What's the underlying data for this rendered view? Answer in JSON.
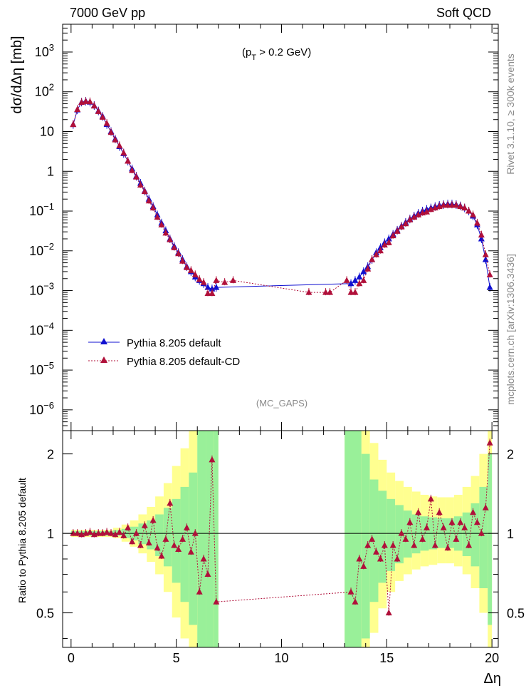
{
  "header": {
    "left": "7000 GeV pp",
    "right": "Soft QCD"
  },
  "annotations": {
    "cut": "(p",
    "cut_sub": "T",
    "cut_rest": " > 0.2 GeV)",
    "analysis": "(MC_GAPS)",
    "side_rivet": "Rivet 3.1.10, ≥ 300k events",
    "side_mcplots": "mcplots.cern.ch [arXiv:1306.3436]"
  },
  "legend": [
    {
      "name": "Pythia 8.205 default",
      "color": "#1010d0"
    },
    {
      "name": "Pythia 8.205 default-CD",
      "color": "#b0103a"
    }
  ],
  "colors": {
    "band_yellow": "#ffff90",
    "band_green": "#99f099",
    "blue": "#1010d0",
    "red": "#b0103a"
  },
  "chart_data": [
    {
      "type": "line",
      "title": "",
      "xlabel": "Δη",
      "ylabel": "dσ/dΔη [mb]",
      "yscale": "log",
      "xlim": [
        -0.4,
        20.3
      ],
      "ylim": [
        3e-07,
        5000
      ],
      "xticks": [
        0,
        5,
        10,
        15,
        20
      ],
      "yticks": [
        {
          "v": 1e-06,
          "t": "10",
          "sup": "−6"
        },
        {
          "v": 1e-05,
          "t": "10",
          "sup": "−5"
        },
        {
          "v": 0.0001,
          "t": "10",
          "sup": "−4"
        },
        {
          "v": 0.001,
          "t": "10",
          "sup": "−3"
        },
        {
          "v": 0.01,
          "t": "10",
          "sup": "−2"
        },
        {
          "v": 0.1,
          "t": "10",
          "sup": "−1"
        },
        {
          "v": 1,
          "t": "1",
          "sup": ""
        },
        {
          "v": 10,
          "t": "10",
          "sup": ""
        },
        {
          "v": 100,
          "t": "10",
          "sup": "2"
        },
        {
          "v": 1000,
          "t": "10",
          "sup": "3"
        }
      ],
      "series": [
        {
          "name": "Pythia 8.205 default",
          "x": [
            0.1,
            0.3,
            0.5,
            0.7,
            0.9,
            1.1,
            1.3,
            1.5,
            1.7,
            1.9,
            2.1,
            2.3,
            2.5,
            2.7,
            2.9,
            3.1,
            3.3,
            3.5,
            3.7,
            3.9,
            4.1,
            4.3,
            4.5,
            4.7,
            4.9,
            5.1,
            5.3,
            5.5,
            5.7,
            5.9,
            6.1,
            6.3,
            6.5,
            6.7,
            6.9,
            13.3,
            13.5,
            13.7,
            13.9,
            14.1,
            14.3,
            14.5,
            14.7,
            14.9,
            15.1,
            15.3,
            15.5,
            15.7,
            15.9,
            16.1,
            16.3,
            16.5,
            16.7,
            16.9,
            17.1,
            17.3,
            17.5,
            17.7,
            17.9,
            18.1,
            18.3,
            18.5,
            18.7,
            18.9,
            19.1,
            19.3,
            19.5,
            19.7,
            19.9
          ],
          "y": [
            15,
            35,
            55,
            58,
            55,
            45,
            33,
            24,
            15,
            10,
            6.5,
            4.2,
            2.8,
            1.8,
            1.15,
            0.75,
            0.5,
            0.32,
            0.2,
            0.13,
            0.08,
            0.05,
            0.032,
            0.02,
            0.013,
            0.009,
            0.006,
            0.004,
            0.003,
            0.0022,
            0.0018,
            0.0015,
            0.0012,
            0.0011,
            0.0012,
            0.0015,
            0.0018,
            0.0022,
            0.003,
            0.004,
            0.006,
            0.009,
            0.012,
            0.016,
            0.02,
            0.026,
            0.033,
            0.042,
            0.052,
            0.063,
            0.075,
            0.088,
            0.1,
            0.11,
            0.12,
            0.13,
            0.14,
            0.145,
            0.15,
            0.15,
            0.145,
            0.135,
            0.12,
            0.1,
            0.075,
            0.045,
            0.02,
            0.006,
            0.0012
          ]
        },
        {
          "name": "Pythia 8.205 default-CD",
          "x": [
            0.1,
            0.3,
            0.5,
            0.7,
            0.9,
            1.1,
            1.3,
            1.5,
            1.7,
            1.9,
            2.1,
            2.3,
            2.5,
            2.7,
            2.9,
            3.1,
            3.3,
            3.5,
            3.7,
            3.9,
            4.1,
            4.3,
            4.5,
            4.7,
            4.9,
            5.1,
            5.3,
            5.5,
            5.7,
            5.9,
            6.1,
            6.3,
            6.5,
            6.7,
            6.9,
            7.3,
            7.7,
            11.3,
            12.1,
            12.3,
            13.1,
            13.3,
            13.5,
            13.7,
            13.9,
            14.1,
            14.3,
            14.5,
            14.7,
            14.9,
            15.1,
            15.3,
            15.5,
            15.7,
            15.9,
            16.1,
            16.3,
            16.5,
            16.7,
            16.9,
            17.1,
            17.3,
            17.5,
            17.7,
            17.9,
            18.1,
            18.3,
            18.5,
            18.7,
            18.9,
            19.1,
            19.3,
            19.5,
            19.7,
            19.9
          ],
          "y": [
            15,
            36,
            54,
            57,
            56,
            44,
            32,
            23,
            16,
            9.5,
            6.2,
            4.4,
            2.9,
            1.8,
            1.05,
            0.72,
            0.45,
            0.31,
            0.18,
            0.12,
            0.07,
            0.045,
            0.028,
            0.019,
            0.012,
            0.0085,
            0.0055,
            0.0038,
            0.0032,
            0.0025,
            0.0019,
            0.0016,
            0.00085,
            0.00085,
            0.0018,
            0.0016,
            0.0018,
            0.0009,
            0.0009,
            0.0009,
            0.0018,
            0.0009,
            0.0009,
            0.0015,
            0.0018,
            0.0035,
            0.006,
            0.008,
            0.01,
            0.014,
            0.016,
            0.024,
            0.031,
            0.04,
            0.048,
            0.06,
            0.07,
            0.08,
            0.09,
            0.095,
            0.11,
            0.12,
            0.13,
            0.14,
            0.14,
            0.14,
            0.14,
            0.13,
            0.12,
            0.1,
            0.08,
            0.05,
            0.025,
            0.008,
            0.0025
          ]
        }
      ]
    },
    {
      "type": "line",
      "title": "",
      "xlabel": "Δη",
      "ylabel": "Ratio to Pythia 8.205 default",
      "yscale": "log",
      "xlim": [
        -0.4,
        20.3
      ],
      "ylim": [
        0.37,
        2.45
      ],
      "xticks": [
        0,
        5,
        10,
        15,
        20
      ],
      "yticks": [
        0.5,
        1,
        2
      ],
      "series": [
        {
          "name": "Pythia 8.205 default-CD / default",
          "x": [
            0.1,
            0.3,
            0.5,
            0.7,
            0.9,
            1.1,
            1.3,
            1.5,
            1.7,
            1.9,
            2.1,
            2.3,
            2.5,
            2.7,
            2.9,
            3.1,
            3.3,
            3.5,
            3.7,
            3.9,
            4.1,
            4.3,
            4.5,
            4.7,
            4.9,
            5.1,
            5.3,
            5.5,
            5.7,
            5.9,
            6.1,
            6.3,
            6.5,
            6.7,
            6.9,
            13.3,
            13.5,
            13.7,
            13.9,
            14.1,
            14.3,
            14.5,
            14.7,
            14.9,
            15.1,
            15.3,
            15.5,
            15.7,
            15.9,
            16.1,
            16.3,
            16.5,
            16.7,
            16.9,
            17.1,
            17.3,
            17.5,
            17.7,
            17.9,
            18.1,
            18.3,
            18.5,
            18.7,
            18.9,
            19.1,
            19.3,
            19.5,
            19.7,
            19.9
          ],
          "y": [
            1.0,
            1.0,
            0.99,
            1.0,
            1.01,
            0.99,
            1.0,
            1.0,
            1.01,
            1.0,
            0.99,
            1.01,
            0.98,
            1.05,
            0.93,
            1.0,
            0.9,
            1.07,
            0.92,
            1.12,
            0.88,
            0.82,
            0.95,
            1.3,
            0.9,
            0.87,
            0.95,
            1.05,
            0.85,
            1.0,
            0.6,
            0.8,
            0.7,
            1.9,
            0.55,
            0.6,
            0.55,
            0.8,
            0.75,
            0.9,
            0.95,
            0.85,
            0.8,
            0.9,
            0.5,
            0.9,
            0.8,
            1.0,
            0.95,
            1.1,
            0.9,
            1.2,
            0.95,
            1.05,
            1.35,
            0.9,
            1.2,
            1.05,
            0.88,
            1.1,
            0.95,
            1.1,
            1.05,
            0.9,
            1.2,
            1.1,
            1.0,
            1.25,
            2.2
          ]
        }
      ],
      "band_x_edges": [
        0.0,
        0.4,
        0.8,
        1.2,
        1.6,
        2.0,
        2.4,
        2.8,
        3.2,
        3.6,
        4.0,
        4.4,
        4.8,
        5.2,
        5.6,
        6.0,
        6.4,
        6.8,
        7.0,
        13.0,
        13.4,
        13.8,
        14.2,
        14.6,
        15.0,
        15.4,
        15.8,
        16.2,
        16.6,
        17.0,
        17.4,
        17.8,
        18.2,
        18.6,
        19.0,
        19.4,
        19.8,
        20.0
      ],
      "band_green": [
        [
          0.98,
          1.02
        ],
        [
          0.98,
          1.02
        ],
        [
          0.98,
          1.02
        ],
        [
          0.98,
          1.02
        ],
        [
          0.98,
          1.02
        ],
        [
          0.98,
          1.03
        ],
        [
          0.96,
          1.04
        ],
        [
          0.94,
          1.06
        ],
        [
          0.91,
          1.09
        ],
        [
          0.87,
          1.12
        ],
        [
          0.82,
          1.18
        ],
        [
          0.75,
          1.25
        ],
        [
          0.65,
          1.35
        ],
        [
          0.55,
          1.5
        ],
        [
          0.45,
          1.7
        ],
        [
          0.37,
          2.45
        ],
        [
          0.37,
          2.45
        ],
        [
          0.37,
          2.45
        ],
        [
          1,
          1
        ],
        [
          0.37,
          2.45
        ],
        [
          0.37,
          2.45
        ],
        [
          0.4,
          2.0
        ],
        [
          0.55,
          1.6
        ],
        [
          0.65,
          1.45
        ],
        [
          0.72,
          1.35
        ],
        [
          0.77,
          1.28
        ],
        [
          0.81,
          1.22
        ],
        [
          0.84,
          1.18
        ],
        [
          0.86,
          1.16
        ],
        [
          0.87,
          1.15
        ],
        [
          0.88,
          1.14
        ],
        [
          0.88,
          1.14
        ],
        [
          0.86,
          1.16
        ],
        [
          0.82,
          1.2
        ],
        [
          0.75,
          1.3
        ],
        [
          0.62,
          1.5
        ],
        [
          0.45,
          2.0
        ]
      ],
      "band_yellow": [
        [
          0.97,
          1.03
        ],
        [
          0.97,
          1.03
        ],
        [
          0.97,
          1.03
        ],
        [
          0.97,
          1.03
        ],
        [
          0.97,
          1.03
        ],
        [
          0.96,
          1.05
        ],
        [
          0.93,
          1.08
        ],
        [
          0.89,
          1.12
        ],
        [
          0.84,
          1.18
        ],
        [
          0.78,
          1.26
        ],
        [
          0.7,
          1.38
        ],
        [
          0.6,
          1.55
        ],
        [
          0.48,
          1.8
        ],
        [
          0.4,
          2.1
        ],
        [
          0.37,
          2.45
        ],
        [
          0.37,
          2.45
        ],
        [
          0.37,
          2.45
        ],
        [
          0.37,
          2.45
        ],
        [
          1,
          1
        ],
        [
          0.37,
          2.45
        ],
        [
          0.37,
          2.45
        ],
        [
          0.37,
          2.45
        ],
        [
          0.42,
          2.2
        ],
        [
          0.52,
          1.9
        ],
        [
          0.6,
          1.7
        ],
        [
          0.66,
          1.58
        ],
        [
          0.7,
          1.5
        ],
        [
          0.73,
          1.44
        ],
        [
          0.75,
          1.4
        ],
        [
          0.76,
          1.38
        ],
        [
          0.77,
          1.37
        ],
        [
          0.77,
          1.37
        ],
        [
          0.75,
          1.4
        ],
        [
          0.7,
          1.5
        ],
        [
          0.62,
          1.65
        ],
        [
          0.5,
          2.0
        ],
        [
          0.37,
          2.45
        ]
      ]
    }
  ]
}
